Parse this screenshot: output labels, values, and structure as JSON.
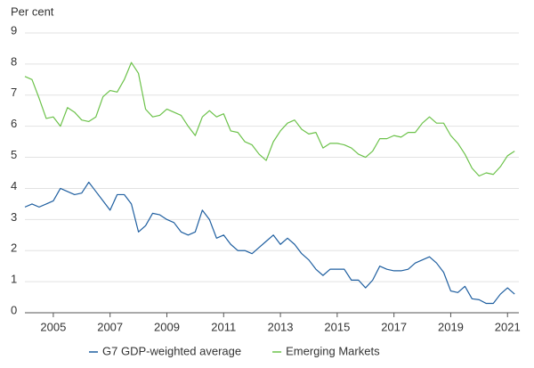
{
  "chart_data": {
    "type": "line",
    "y_label": "Per cent",
    "x": [
      2004,
      2004.25,
      2004.5,
      2004.75,
      2005,
      2005.25,
      2005.5,
      2005.75,
      2006,
      2006.25,
      2006.5,
      2006.75,
      2007,
      2007.25,
      2007.5,
      2007.75,
      2008,
      2008.25,
      2008.5,
      2008.75,
      2009,
      2009.25,
      2009.5,
      2009.75,
      2010,
      2010.25,
      2010.5,
      2010.75,
      2011,
      2011.25,
      2011.5,
      2011.75,
      2012,
      2012.25,
      2012.5,
      2012.75,
      2013,
      2013.25,
      2013.5,
      2013.75,
      2014,
      2014.25,
      2014.5,
      2014.75,
      2015,
      2015.25,
      2015.5,
      2015.75,
      2016,
      2016.25,
      2016.5,
      2016.75,
      2017,
      2017.25,
      2017.5,
      2017.75,
      2018,
      2018.25,
      2018.5,
      2018.75,
      2019,
      2019.25,
      2019.5,
      2019.75,
      2020,
      2020.25,
      2020.5,
      2020.75,
      2021,
      2021.25
    ],
    "series": [
      {
        "name": "G7 GDP-weighted average",
        "color": "#1f5fa0",
        "values": [
          3.4,
          3.5,
          3.4,
          3.5,
          3.6,
          4.0,
          3.9,
          3.8,
          3.85,
          4.2,
          3.9,
          3.6,
          3.3,
          3.8,
          3.8,
          3.5,
          2.6,
          2.8,
          3.2,
          3.15,
          3.0,
          2.9,
          2.6,
          2.5,
          2.6,
          3.3,
          3.0,
          2.4,
          2.5,
          2.2,
          2.0,
          2.0,
          1.9,
          2.1,
          2.3,
          2.5,
          2.2,
          2.4,
          2.2,
          1.9,
          1.7,
          1.4,
          1.2,
          1.4,
          1.4,
          1.4,
          1.05,
          1.05,
          0.8,
          1.05,
          1.5,
          1.4,
          1.35,
          1.35,
          1.4,
          1.6,
          1.7,
          1.8,
          1.6,
          1.3,
          0.7,
          0.65,
          0.85,
          0.45,
          0.42,
          0.3,
          0.3,
          0.6,
          0.8,
          0.6
        ]
      },
      {
        "name": "Emerging Markets",
        "color": "#6cc24a",
        "values": [
          7.6,
          7.5,
          6.9,
          6.25,
          6.3,
          6.0,
          6.6,
          6.45,
          6.2,
          6.15,
          6.3,
          6.95,
          7.15,
          7.1,
          7.5,
          8.05,
          7.7,
          6.55,
          6.3,
          6.35,
          6.55,
          6.45,
          6.35,
          6.0,
          5.7,
          6.3,
          6.5,
          6.3,
          6.4,
          5.85,
          5.8,
          5.5,
          5.4,
          5.1,
          4.9,
          5.5,
          5.85,
          6.1,
          6.2,
          5.9,
          5.75,
          5.8,
          5.3,
          5.45,
          5.45,
          5.4,
          5.3,
          5.1,
          5.0,
          5.2,
          5.6,
          5.6,
          5.7,
          5.65,
          5.8,
          5.8,
          6.1,
          6.3,
          6.1,
          6.1,
          5.7,
          5.45,
          5.1,
          4.65,
          4.4,
          4.5,
          4.45,
          4.7,
          5.05,
          5.2
        ]
      }
    ],
    "xlim": [
      2004,
      2021.4
    ],
    "xticks": [
      2005,
      2007,
      2009,
      2011,
      2013,
      2015,
      2017,
      2019,
      2021
    ],
    "ylim": [
      0,
      9
    ],
    "yticks": [
      0,
      1,
      2,
      3,
      4,
      5,
      6,
      7,
      8,
      9
    ],
    "grid": true,
    "legend": "bottom"
  }
}
